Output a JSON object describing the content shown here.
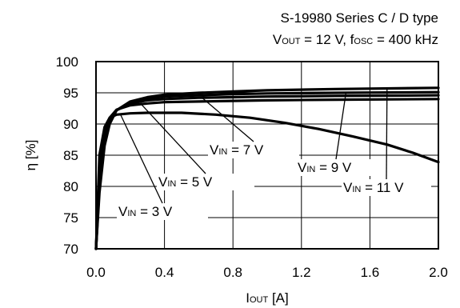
{
  "chart_data": {
    "type": "line",
    "title": "S-19980 Series C / D type",
    "subtitle": {
      "v": "V",
      "v_sub": "OUT",
      "v_rest": " = 12 V, f",
      "f_sub": "OSC",
      "f_rest": " = 400 kHz"
    },
    "xlabel": {
      "main": "I",
      "sub": "OUT",
      "rest": " [A]"
    },
    "ylabel": "η [%]",
    "xlim": [
      0.0,
      2.0
    ],
    "ylim": [
      70,
      100
    ],
    "xticks": [
      "0.0",
      "0.4",
      "0.8",
      "1.2",
      "1.6",
      "2.0"
    ],
    "yticks": [
      "70",
      "75",
      "80",
      "85",
      "90",
      "95",
      "100"
    ],
    "grid": true,
    "series": [
      {
        "name": "3 V",
        "label": {
          "a": "V",
          "sub": "IN",
          "b": " = 3 V"
        },
        "x": [
          0.0,
          0.02,
          0.05,
          0.08,
          0.12,
          0.2,
          0.3,
          0.5,
          0.7,
          0.9,
          1.1,
          1.3,
          1.5,
          1.7,
          1.85,
          2.0
        ],
        "y": [
          70,
          85,
          89.5,
          91,
          91.5,
          91.7,
          91.8,
          91.8,
          91.5,
          91,
          90.2,
          89.2,
          88,
          86.7,
          85.4,
          83.9
        ]
      },
      {
        "name": "5 V",
        "label": {
          "a": "V",
          "sub": "IN",
          "b": " = 5 V"
        },
        "x": [
          0.0,
          0.02,
          0.05,
          0.08,
          0.12,
          0.2,
          0.3,
          0.4,
          0.6,
          0.8,
          1.0,
          1.4,
          2.0
        ],
        "y": [
          70,
          83,
          88.5,
          91,
          92.3,
          93,
          93.3,
          93.5,
          93.6,
          93.7,
          93.8,
          93.9,
          94.0
        ]
      },
      {
        "name": "7 V",
        "label": {
          "a": "V",
          "sub": "IN",
          "b": " = 7 V"
        },
        "x": [
          0.0,
          0.02,
          0.05,
          0.08,
          0.12,
          0.2,
          0.3,
          0.4,
          0.6,
          0.8,
          1.0,
          1.4,
          2.0
        ],
        "y": [
          70,
          81,
          87.5,
          90.5,
          92.2,
          93.3,
          93.8,
          94.0,
          94.2,
          94.3,
          94.4,
          94.5,
          94.6
        ]
      },
      {
        "name": "9 V",
        "label": {
          "a": "V",
          "sub": "IN",
          "b": " = 9 V"
        },
        "x": [
          0.0,
          0.02,
          0.05,
          0.08,
          0.12,
          0.2,
          0.3,
          0.4,
          0.6,
          0.8,
          1.0,
          1.4,
          2.0
        ],
        "y": [
          70,
          80,
          87,
          90.2,
          92.2,
          93.5,
          94.1,
          94.4,
          94.6,
          94.8,
          94.9,
          95.0,
          95.1
        ]
      },
      {
        "name": "11 V",
        "label": {
          "a": "V",
          "sub": "IN",
          "b": " = 11 V"
        },
        "x": [
          0.0,
          0.02,
          0.05,
          0.08,
          0.12,
          0.2,
          0.3,
          0.4,
          0.6,
          0.8,
          1.0,
          1.4,
          2.0
        ],
        "y": [
          70,
          79,
          86.5,
          90,
          92.2,
          93.6,
          94.3,
          94.7,
          95.0,
          95.2,
          95.4,
          95.6,
          95.8
        ]
      }
    ]
  }
}
